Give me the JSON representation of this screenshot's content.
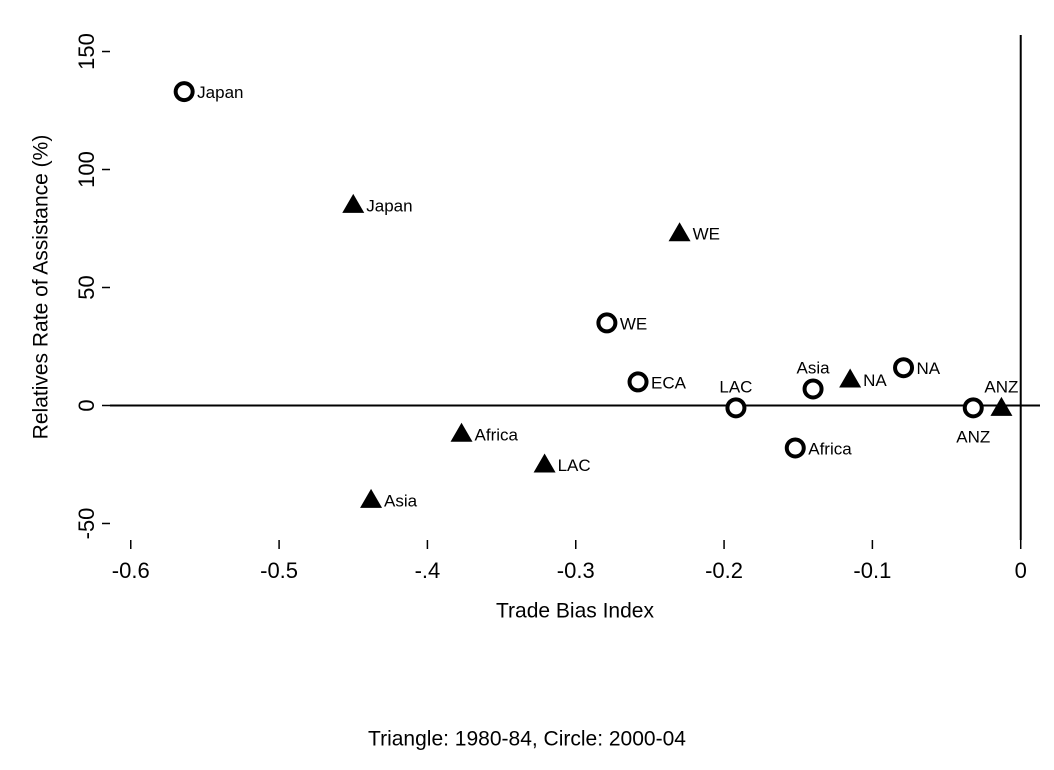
{
  "chart_data": {
    "type": "scatter",
    "x_label": "Trade Bias Index",
    "y_label": "Relatives Rate of Assistance (%)",
    "note": "Triangle: 1980-84, Circle: 2000-04",
    "xlim": [
      -0.614,
      0.013
    ],
    "ylim": [
      -57,
      157
    ],
    "xticks": [
      -0.6,
      -0.5,
      {
        "value": -0.4,
        "label": "-.4"
      },
      -0.3,
      -0.2,
      -0.1,
      0
    ],
    "yticks": [
      -50,
      0,
      50,
      100,
      150
    ],
    "series": [
      {
        "marker": "triangle",
        "color": "#000000",
        "labels": [
          "Japan",
          "WE",
          "NA",
          "ANZ",
          "Africa",
          "LAC",
          "Asia"
        ],
        "x": [
          -0.45,
          -0.23,
          -0.115,
          -0.013,
          -0.377,
          -0.321,
          -0.438
        ],
        "values": [
          85,
          73,
          11,
          -1,
          -12,
          -25,
          -40
        ]
      },
      {
        "marker": "circle",
        "color": "#000000",
        "labels": [
          "Japan",
          "WE",
          "ECA",
          "LAC",
          "Asia",
          "NA",
          "ANZ",
          "Africa"
        ],
        "x": [
          -0.564,
          -0.279,
          -0.258,
          -0.192,
          -0.14,
          -0.079,
          -0.032,
          -0.152
        ],
        "values": [
          133,
          35,
          10,
          -1,
          7,
          16,
          -1,
          -18
        ]
      }
    ]
  }
}
